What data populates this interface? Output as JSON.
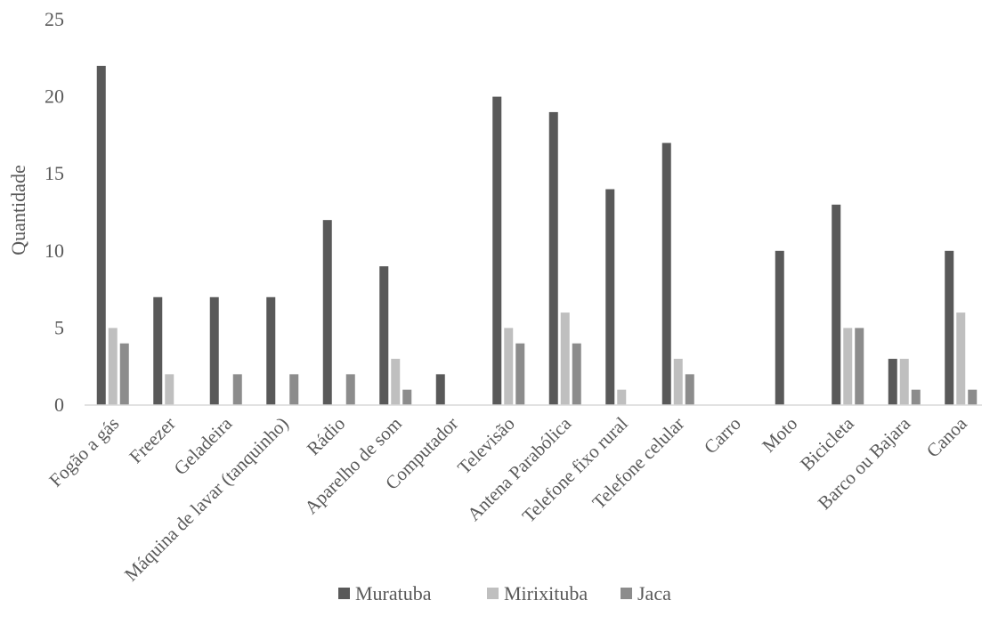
{
  "chart_data": {
    "type": "bar",
    "ylabel": "Quantidade",
    "ylim": [
      0,
      25
    ],
    "yticks": [
      0,
      5,
      10,
      15,
      20,
      25
    ],
    "grid": false,
    "legend_position": "bottom",
    "categories": [
      "Fogão a gás",
      "Freezer",
      "Geladeira",
      "Máquina de lavar (tanquinho)",
      "Rádio",
      "Aparelho de som",
      "Computador",
      "Televisão",
      "Antena Parabólica",
      "Telefone fixo rural",
      "Telefone celular",
      "Carro",
      "Moto",
      "Bicicleta",
      "Barco ou Bajara",
      "Canoa"
    ],
    "series": [
      {
        "name": "Muratuba",
        "color": "#595959",
        "values": [
          22,
          7,
          7,
          7,
          12,
          9,
          2,
          20,
          19,
          14,
          17,
          0,
          10,
          13,
          3,
          10
        ]
      },
      {
        "name": "Mirixituba",
        "color": "#bfbfbf",
        "values": [
          5,
          2,
          0,
          0,
          0,
          3,
          0,
          5,
          6,
          1,
          3,
          0,
          0,
          5,
          3,
          6
        ]
      },
      {
        "name": "Jaca",
        "color": "#8c8c8c",
        "values": [
          4,
          0,
          2,
          2,
          2,
          1,
          0,
          4,
          4,
          0,
          2,
          0,
          0,
          5,
          1,
          1
        ]
      }
    ]
  }
}
